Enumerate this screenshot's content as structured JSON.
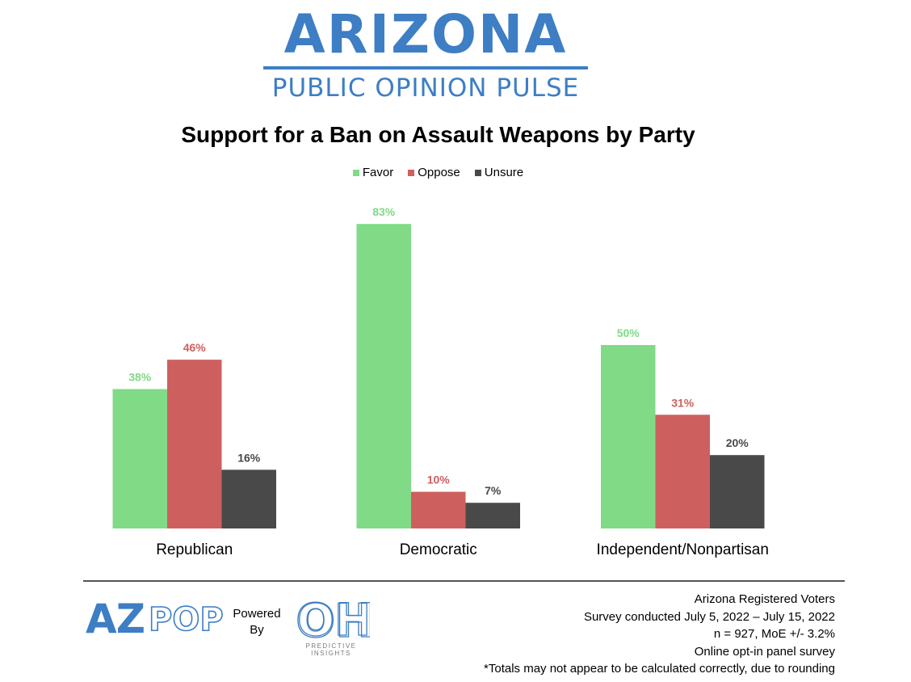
{
  "brand": {
    "title": "ARIZONA",
    "subtitle": "PUBLIC OPINION PULSE",
    "color": "#3d7ec4"
  },
  "chart_data": {
    "type": "bar",
    "title": "Support for a Ban on Assault Weapons by Party",
    "categories": [
      "Republican",
      "Democratic",
      "Independent/Nonpartisan"
    ],
    "series": [
      {
        "name": "Favor",
        "color": "#80da86",
        "label_color": "#80da86",
        "values": [
          38,
          83,
          50
        ],
        "labels": [
          "38%",
          "83%",
          "50%"
        ]
      },
      {
        "name": "Oppose",
        "color": "#cd605e",
        "label_color": "#cd605e",
        "values": [
          46,
          10,
          31
        ],
        "labels": [
          "46%",
          "10%",
          "31%"
        ]
      },
      {
        "name": "Unsure",
        "color": "#494949",
        "label_color": "#494949",
        "values": [
          16,
          7,
          20
        ],
        "labels": [
          "16%",
          "7%",
          "20%"
        ]
      }
    ],
    "ylim": [
      0,
      100
    ],
    "xlabel": "",
    "ylabel": "",
    "grid": false,
    "legend_position": "top-center"
  },
  "footer": {
    "azpop_logo_text": "AZPOP",
    "powered_by": [
      "Powered",
      "By"
    ],
    "oh_logo_text": "OH",
    "oh_tagline": [
      "PREDICTIVE",
      "INSIGHTS"
    ],
    "notes": [
      "Arizona Registered Voters",
      "Survey conducted July 5, 2022 – July 15, 2022",
      "n = 927, MoE +/- 3.2%",
      "Online opt-in panel survey",
      "*Totals may not appear to be calculated correctly, due to rounding"
    ]
  }
}
